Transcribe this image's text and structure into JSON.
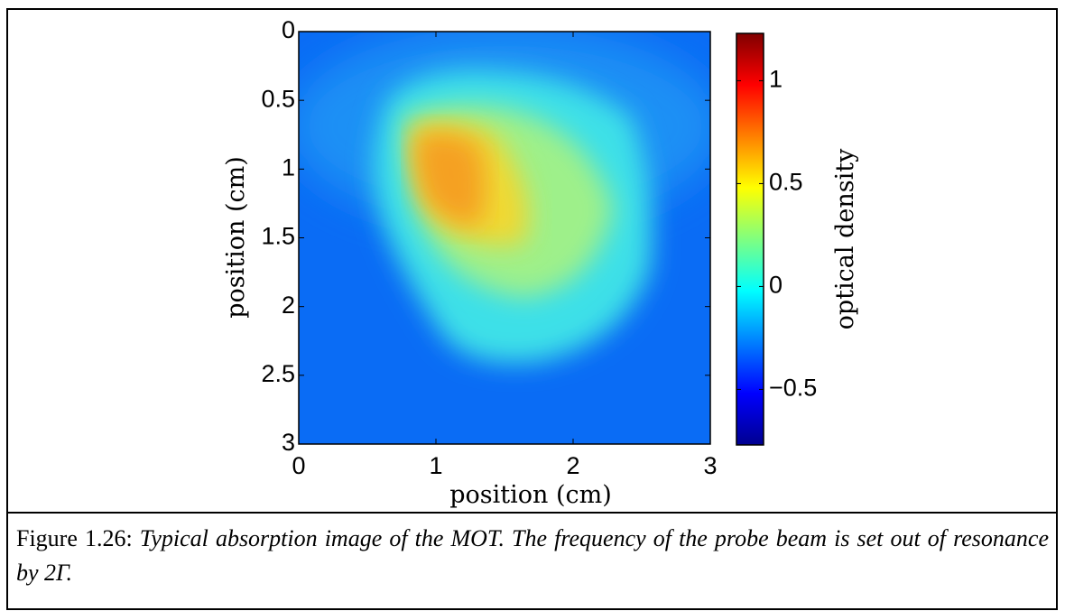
{
  "chart_data": {
    "type": "image",
    "xlabel": "position (cm)",
    "ylabel": "position (cm)",
    "xlim": [
      0,
      3
    ],
    "xticks": [
      0,
      1,
      2,
      3
    ],
    "ylim": [
      3,
      0
    ],
    "yticks": [
      0,
      0.5,
      1,
      1.5,
      2,
      2.5,
      3
    ],
    "colormap": "jet",
    "colorbar": {
      "label": "optical density",
      "clim": [
        -0.77,
        1.23
      ],
      "ticks": [
        {
          "value": -0.5,
          "label": "−0.5"
        },
        0,
        0.5,
        1
      ]
    }
  },
  "caption": {
    "label": "Figure 1.26:",
    "text": "Typical absorption image of the MOT. The frequency of the probe beam is set out of resonance by 2Γ."
  }
}
